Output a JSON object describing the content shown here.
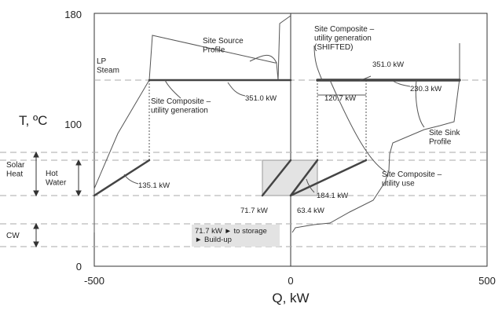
{
  "axes": {
    "y_title": "T, ºC",
    "x_title": "Q, kW",
    "y_ticks": [
      "0",
      "100",
      "180"
    ],
    "x_ticks": [
      "-500",
      "0",
      "500"
    ],
    "x_range": [
      -500,
      500
    ],
    "y_range": [
      0,
      180
    ]
  },
  "zones": {
    "lp_steam": "LP\nSteam",
    "solar_heat": "Solar\nHeat",
    "hot_water": "Hot\nWater",
    "cw": "CW"
  },
  "annotations": {
    "site_source_profile": "Site Source\nProfile",
    "site_composite_gen_shifted": "Site Composite –\nutility generation\n(SHIFTED)",
    "site_composite_gen": "Site Composite –\nutility generation",
    "site_sink_profile": "Site Sink\nProfile",
    "site_composite_use": "Site Composite –\nutility use",
    "storage_note": "71.7 kW ► to storage\n► Build-up"
  },
  "values": {
    "kw_351_left": "351.0 kW",
    "kw_351_right": "351.0 kW",
    "kw_230": "230.3 kW",
    "kw_120": "120.7 kW",
    "kw_135": "135.1 kW",
    "kw_71": "71.7 kW",
    "kw_63": "63.4 kW",
    "kw_184": "184.1 kW"
  },
  "colors": {
    "thick_line": "#444444",
    "thin_line": "#555555",
    "dashed_line": "#aaaaaa",
    "storage_box": "#e3e3e3"
  }
}
